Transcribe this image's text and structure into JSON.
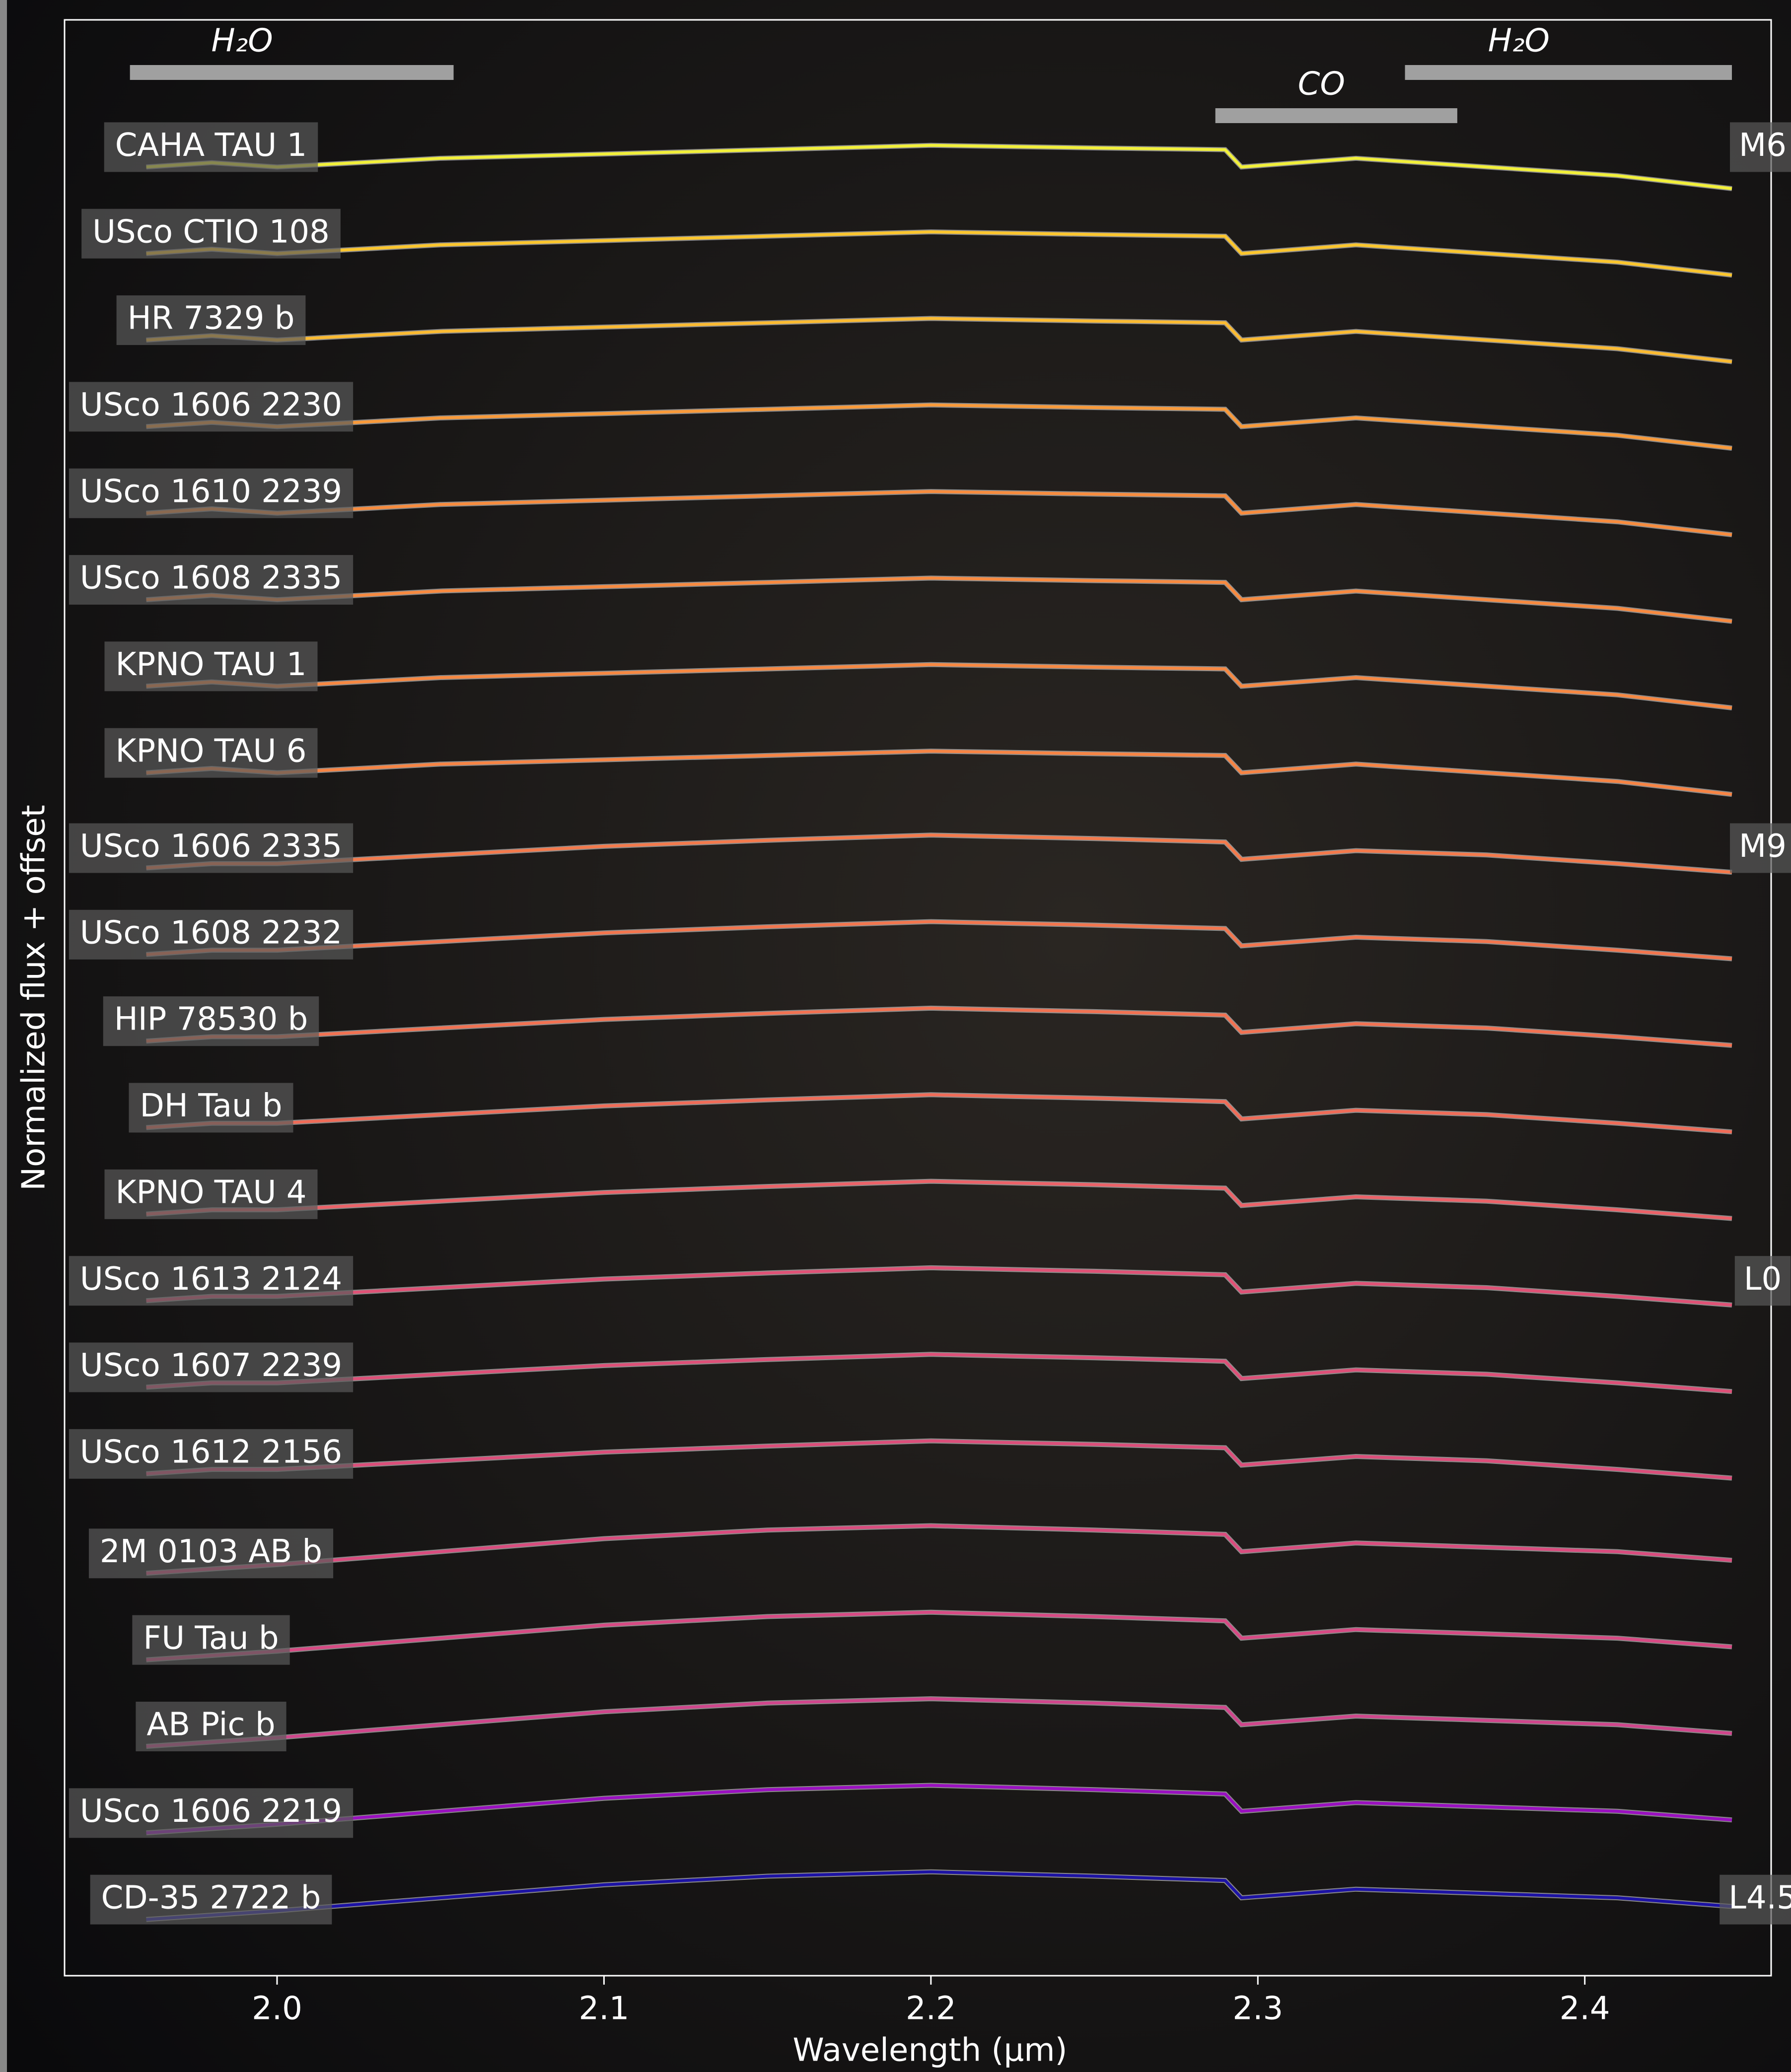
{
  "chart_data": {
    "type": "line",
    "xlabel": "Wavelength (μm)",
    "ylabel": "Normalized flux + offset",
    "xlim": [
      1.935,
      2.457
    ],
    "ylim": [
      0,
      22.6
    ],
    "xticks": [
      {
        "value": 2,
        "label": "2.0"
      },
      2.1,
      2.2,
      2.3,
      2.4
    ],
    "bands": [
      {
        "label": "H₂O",
        "x": [
          1.955,
          2.054
        ]
      },
      {
        "label": "CO",
        "x": [
          2.287,
          2.361
        ]
      },
      {
        "label": "H₂O",
        "x": [
          2.345,
          2.445
        ]
      }
    ],
    "x": [
      1.96,
      1.98,
      2.0,
      2.05,
      2.1,
      2.15,
      2.2,
      2.25,
      2.29,
      2.295,
      2.33,
      2.37,
      2.41,
      2.445
    ],
    "series": [
      {
        "name": "CAHA TAU 1",
        "color": "#f2f03a",
        "spectral_type": "M6",
        "values": [
          20.9,
          20.95,
          20.9,
          21,
          21.05,
          21.1,
          21.15,
          21.12,
          21.1,
          20.9,
          21,
          20.9,
          20.8,
          20.65
        ]
      },
      {
        "name": "USco CTIO 108",
        "color": "#fbc62e",
        "values": [
          19.9,
          19.95,
          19.9,
          20,
          20.05,
          20.1,
          20.15,
          20.12,
          20.1,
          19.9,
          20,
          19.9,
          19.8,
          19.65
        ]
      },
      {
        "name": "HR 7329 b",
        "color": "#fbbb32",
        "values": [
          18.9,
          18.95,
          18.9,
          19,
          19.05,
          19.1,
          19.15,
          19.12,
          19.1,
          18.9,
          19,
          18.9,
          18.8,
          18.65
        ]
      },
      {
        "name": "USco 1606 2230",
        "color": "#f99a3a",
        "values": [
          17.9,
          17.95,
          17.9,
          18,
          18.05,
          18.1,
          18.15,
          18.12,
          18.1,
          17.9,
          18,
          17.9,
          17.8,
          17.65
        ]
      },
      {
        "name": "USco 1610 2239",
        "color": "#f88c3e",
        "values": [
          16.9,
          16.95,
          16.9,
          17,
          17.05,
          17.1,
          17.15,
          17.12,
          17.1,
          16.9,
          17,
          16.9,
          16.8,
          16.65
        ]
      },
      {
        "name": "USco 1608 2335",
        "color": "#f88a40",
        "values": [
          15.9,
          15.95,
          15.9,
          16,
          16.05,
          16.1,
          16.15,
          16.12,
          16.1,
          15.9,
          16,
          15.9,
          15.8,
          15.65
        ]
      },
      {
        "name": "KPNO TAU 1",
        "color": "#f78842",
        "values": [
          14.9,
          14.95,
          14.9,
          15,
          15.05,
          15.1,
          15.15,
          15.12,
          15.1,
          14.9,
          15,
          14.9,
          14.8,
          14.65
        ]
      },
      {
        "name": "KPNO TAU 6",
        "color": "#f78444",
        "values": [
          13.9,
          13.95,
          13.9,
          14,
          14.05,
          14.1,
          14.15,
          14.12,
          14.1,
          13.9,
          14,
          13.9,
          13.8,
          13.65
        ]
      },
      {
        "name": "USco 1606 2335",
        "color": "#f47a4c",
        "spectral_type": "M9",
        "values": [
          12.8,
          12.85,
          12.85,
          12.95,
          13.05,
          13.12,
          13.18,
          13.14,
          13.1,
          12.9,
          13,
          12.95,
          12.85,
          12.75
        ]
      },
      {
        "name": "USco 1608 2232",
        "color": "#f3764e",
        "values": [
          11.8,
          11.85,
          11.85,
          11.95,
          12.05,
          12.12,
          12.18,
          12.14,
          12.1,
          11.9,
          12,
          11.95,
          11.85,
          11.75
        ]
      },
      {
        "name": "HIP 78530 b",
        "color": "#f27252",
        "values": [
          10.8,
          10.85,
          10.85,
          10.95,
          11.05,
          11.12,
          11.18,
          11.14,
          11.1,
          10.9,
          11,
          10.95,
          10.85,
          10.75
        ]
      },
      {
        "name": "DH Tau b",
        "color": "#f06c58",
        "values": [
          9.8,
          9.85,
          9.85,
          9.95,
          10.05,
          10.12,
          10.18,
          10.14,
          10.1,
          9.9,
          10,
          9.95,
          9.85,
          9.75
        ]
      },
      {
        "name": "KPNO TAU 4",
        "color": "#ec6268",
        "values": [
          8.8,
          8.85,
          8.85,
          8.95,
          9.05,
          9.12,
          9.18,
          9.14,
          9.1,
          8.9,
          9,
          8.95,
          8.85,
          8.75
        ]
      },
      {
        "name": "USco 1613 2124",
        "color": "#e05276",
        "spectral_type": "L0",
        "values": [
          7.8,
          7.85,
          7.85,
          7.95,
          8.05,
          8.12,
          8.18,
          8.14,
          8.1,
          7.9,
          8,
          7.95,
          7.85,
          7.75
        ]
      },
      {
        "name": "USco 1607 2239",
        "color": "#de5078",
        "values": [
          6.8,
          6.85,
          6.85,
          6.95,
          7.05,
          7.12,
          7.18,
          7.14,
          7.1,
          6.9,
          7,
          6.95,
          6.85,
          6.75
        ]
      },
      {
        "name": "USco 1612 2156",
        "color": "#dc4e7a",
        "values": [
          5.8,
          5.85,
          5.85,
          5.95,
          6.05,
          6.12,
          6.18,
          6.14,
          6.1,
          5.9,
          6,
          5.95,
          5.85,
          5.75
        ]
      },
      {
        "name": "2M 0103 AB b",
        "color": "#da4c7e",
        "values": [
          4.65,
          4.7,
          4.75,
          4.9,
          5.05,
          5.15,
          5.2,
          5.15,
          5.1,
          4.9,
          5,
          4.95,
          4.9,
          4.8
        ]
      },
      {
        "name": "FU Tau b",
        "color": "#d84a84",
        "values": [
          3.65,
          3.7,
          3.75,
          3.9,
          4.05,
          4.15,
          4.2,
          4.15,
          4.1,
          3.9,
          4,
          3.95,
          3.9,
          3.8
        ]
      },
      {
        "name": "AB Pic b",
        "color": "#d0468c",
        "values": [
          2.65,
          2.7,
          2.75,
          2.9,
          3.05,
          3.15,
          3.2,
          3.15,
          3.1,
          2.9,
          3,
          2.95,
          2.9,
          2.8
        ]
      },
      {
        "name": "USco 1606 2219",
        "color": "#9a10c0",
        "values": [
          1.65,
          1.7,
          1.75,
          1.9,
          2.05,
          2.15,
          2.2,
          2.15,
          2.1,
          1.9,
          2,
          1.95,
          1.9,
          1.8
        ]
      },
      {
        "name": "CD-35 2722 b",
        "color": "#1c12a4",
        "spectral_type": "L4.5",
        "values": [
          0.65,
          0.7,
          0.75,
          0.9,
          1.05,
          1.15,
          1.2,
          1.15,
          1.1,
          0.9,
          1,
          0.95,
          0.9,
          0.8
        ]
      }
    ]
  }
}
